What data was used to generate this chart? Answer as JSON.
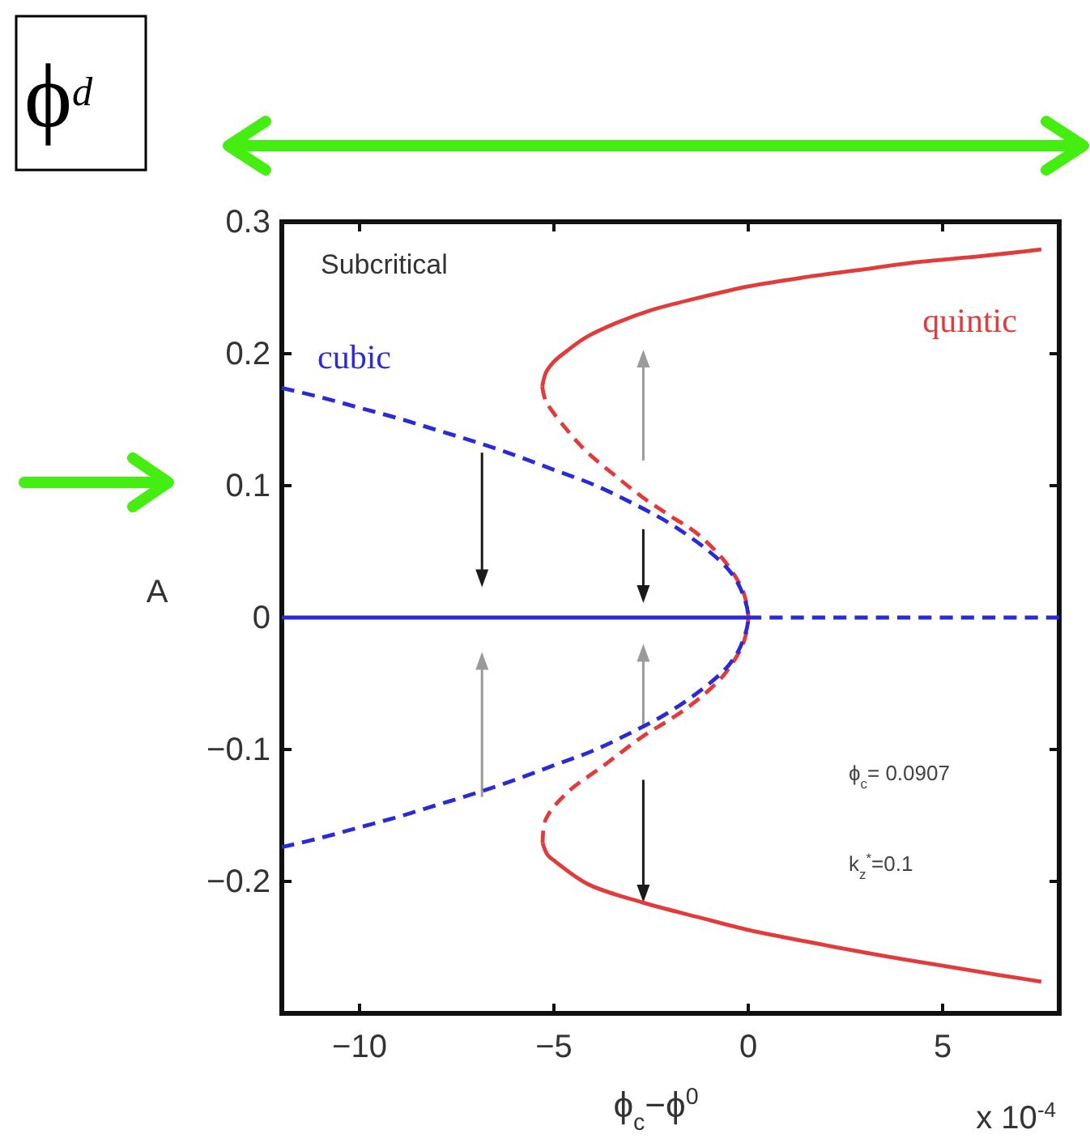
{
  "chart_data": {
    "type": "line",
    "xlabel": "ϕ$_{c}$−ϕ$^{0}$",
    "ylabel": "A",
    "annotations": [
      "Subcritical",
      "ϕ$_{c}$= 0.0907",
      "k$_{z}$$^{*}$=0.1",
      "x 10$^{-4}$",
      "ϕ$^{d}$"
    ],
    "xlim": [
      -12,
      8
    ],
    "ylim": [
      -0.3,
      0.3
    ],
    "xticks": [
      {
        "value": -10,
        "label": "−10"
      },
      {
        "value": -5,
        "label": "−5"
      },
      0,
      5
    ],
    "yticks": [
      {
        "value": -0.2,
        "label": "−0.2"
      },
      {
        "value": -0.1,
        "label": "−0.1"
      },
      0,
      0.1,
      0.2,
      0.3
    ],
    "series": [
      {
        "name": "quintic",
        "color": "#e23b3b",
        "line_style": "solid",
        "x": [
          -5.3,
          -5.2,
          -5.0,
          -4.67,
          -4.2,
          -3.42,
          -2.5,
          -1.33,
          0,
          1.46,
          3,
          4.21,
          6,
          7.54
        ],
        "values": [
          0.175,
          0.186,
          0.194,
          0.202,
          0.212,
          0.223,
          0.233,
          0.242,
          0.251,
          0.258,
          0.264,
          0.269,
          0.274,
          0.279
        ]
      },
      {
        "color": "#e23b3b",
        "line_style": "dashed",
        "x": [
          -5.3,
          -5.22,
          -5.08,
          -4.6,
          -4.13,
          -3.4,
          -2.71,
          -2.0,
          -1.33,
          -0.67,
          -0.25,
          -0.1,
          0,
          -0.1,
          -0.25,
          -0.67,
          -1.33,
          -2.0,
          -2.71,
          -3.71,
          -4.67,
          -5.21,
          -5.29
        ],
        "values": [
          0.175,
          0.165,
          0.158,
          0.14,
          0.125,
          0.107,
          0.091,
          0.077,
          0.064,
          0.045,
          0.027,
          0.017,
          0,
          -0.017,
          -0.027,
          -0.045,
          -0.063,
          -0.077,
          -0.09,
          -0.112,
          -0.133,
          -0.153,
          -0.171
        ]
      },
      {
        "color": "#e23b3b",
        "line_style": "solid",
        "x": [
          -5.29,
          -5.16,
          -4.96,
          -4.13,
          -2.71,
          -1.3,
          0.04,
          1.4,
          2.83,
          4.2,
          5.63,
          7.54
        ],
        "values": [
          -0.171,
          -0.18,
          -0.185,
          -0.202,
          -0.216,
          -0.227,
          -0.237,
          -0.245,
          -0.253,
          -0.26,
          -0.267,
          -0.276
        ]
      },
      {
        "name": "cubic",
        "color": "#2a2ad6",
        "line_style": "dashed",
        "x": [
          -12,
          -11,
          -10,
          -9,
          -8,
          -7,
          -6,
          -5,
          -4,
          -3,
          -2,
          -1,
          -0.5,
          -0.2,
          0,
          -0.2,
          -0.5,
          -1,
          -2,
          -3,
          -4,
          -5,
          -6,
          -7,
          -8,
          -9,
          -10,
          -11,
          -12
        ],
        "values": [
          0.174,
          0.167,
          0.159,
          0.151,
          0.142,
          0.133,
          0.123,
          0.112,
          0.101,
          0.087,
          0.071,
          0.05,
          0.036,
          0.022,
          0,
          -0.022,
          -0.036,
          -0.05,
          -0.071,
          -0.087,
          -0.101,
          -0.112,
          -0.123,
          -0.133,
          -0.142,
          -0.151,
          -0.159,
          -0.167,
          -0.174
        ]
      },
      {
        "color": "#2a2ad6",
        "line_style": "solid",
        "x": [
          -12,
          0
        ],
        "values": [
          0,
          0
        ]
      },
      {
        "color": "#2a2ad6",
        "line_style": "dashed",
        "x": [
          0,
          8
        ],
        "values": [
          0,
          0
        ]
      }
    ]
  }
}
